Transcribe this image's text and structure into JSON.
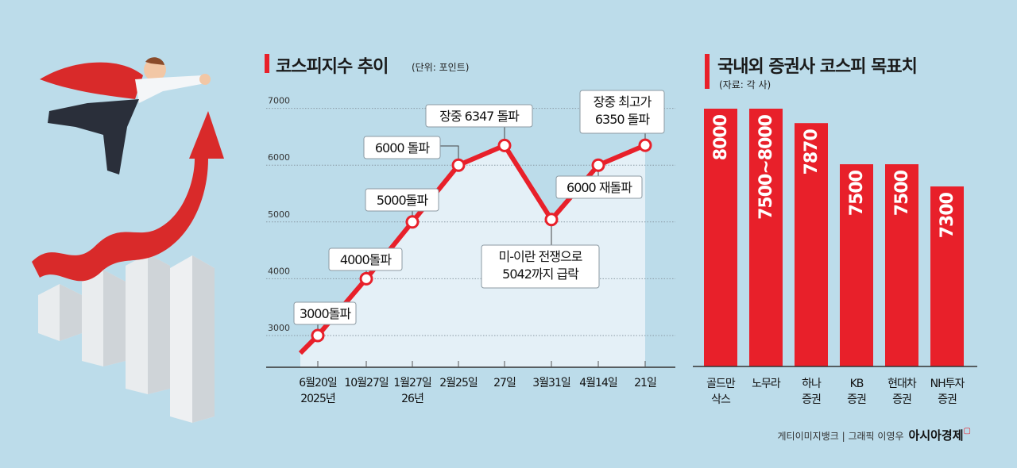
{
  "line_panel": {
    "title": "코스피지수 추이",
    "unit": "(단위: 포인트)"
  },
  "bar_panel": {
    "title": "국내외 증권사 코스피 목표치",
    "source": "(자료: 각 사)"
  },
  "credit": {
    "text": "게티이미지뱅크 | 그래픽 이영우",
    "brand": "아시아경제"
  },
  "colors": {
    "background": "#bcdcea",
    "accent": "#e8202a",
    "area": "#e4f0f7"
  },
  "chart_data": [
    {
      "type": "line",
      "title": "코스피지수 추이",
      "ylabel": "(단위: 포인트)",
      "ylim": [
        2400,
        7000
      ],
      "yticks": [
        3000,
        4000,
        5000,
        6000,
        7000
      ],
      "grid": true,
      "categories": [
        "6월20일\n2025년",
        "10월27일",
        "1월27일\n26년",
        "2월25일",
        "27일",
        "3월31일",
        "4월14일",
        "21일"
      ],
      "values": [
        3000,
        4000,
        5000,
        6000,
        6347,
        5042,
        6000,
        6350
      ],
      "annotations": [
        "3000돌파",
        "4000돌파",
        "5000돌파",
        "6000 돌파",
        "장중 6347 돌파",
        "미-이란 전쟁으로\n5042까지 급락",
        "6000 재돌파",
        "장중 최고가\n6350 돌파"
      ]
    },
    {
      "type": "bar",
      "title": "국내외 증권사 코스피 목표치",
      "source": "(자료: 각 사)",
      "categories": [
        "골드만\n삭스",
        "노무라",
        "하나\n증권",
        "KB\n증권",
        "현대차\n증권",
        "NH투자\n증권"
      ],
      "values": [
        8000,
        8000,
        7870,
        7500,
        7500,
        7300
      ],
      "labels": [
        "8000",
        "7500~8000",
        "7870",
        "7500",
        "7500",
        "7300"
      ],
      "ylim": [
        5680,
        8000
      ]
    }
  ]
}
